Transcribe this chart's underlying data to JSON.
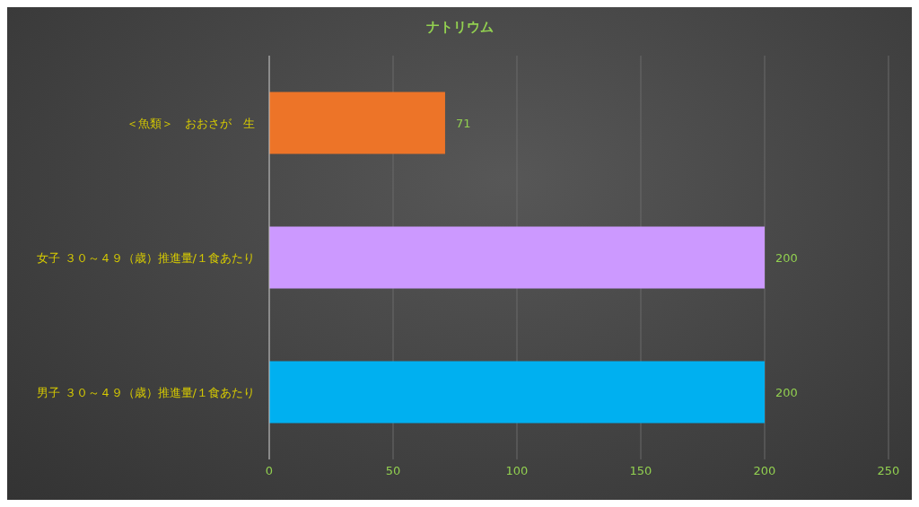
{
  "chart_data": {
    "type": "bar",
    "orientation": "horizontal",
    "title": "ナトリウム",
    "categories": [
      "＜魚類＞　おおさが　生",
      "女子 ３０～４９（歳）推進量/１食あたり",
      "男子 ３０～４９（歳）推進量/１食あたり"
    ],
    "values": [
      71,
      200,
      200
    ],
    "colors": [
      "#ed7428",
      "#cc99ff",
      "#00b0f0"
    ],
    "xlim": [
      0,
      250
    ],
    "xticks": [
      0,
      50,
      100,
      150,
      200,
      250
    ],
    "grid": "x",
    "legend": false,
    "data_labels": true
  }
}
